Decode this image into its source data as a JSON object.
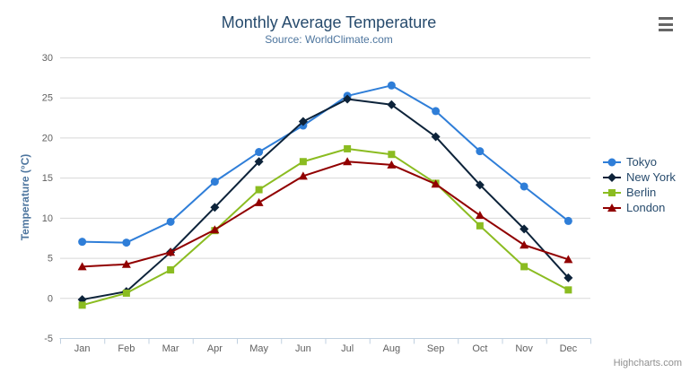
{
  "chart_data": {
    "type": "line",
    "title": "Monthly Average Temperature",
    "subtitle": "Source: WorldClimate.com",
    "categories": [
      "Jan",
      "Feb",
      "Mar",
      "Apr",
      "May",
      "Jun",
      "Jul",
      "Aug",
      "Sep",
      "Oct",
      "Nov",
      "Dec"
    ],
    "xlabel": "",
    "ylabel": "Temperature (°C)",
    "ylim": [
      -5,
      30
    ],
    "ytick_interval": 5,
    "grid": true,
    "legend_position": "right",
    "series": [
      {
        "name": "Tokyo",
        "color": "#2f7ed8",
        "marker": "circle",
        "values": [
          7.0,
          6.9,
          9.5,
          14.5,
          18.2,
          21.5,
          25.2,
          26.5,
          23.3,
          18.3,
          13.9,
          9.6
        ]
      },
      {
        "name": "New York",
        "color": "#0d233a",
        "marker": "diamond",
        "values": [
          -0.2,
          0.8,
          5.7,
          11.3,
          17.0,
          22.0,
          24.8,
          24.1,
          20.1,
          14.1,
          8.6,
          2.5
        ]
      },
      {
        "name": "Berlin",
        "color": "#8bbc21",
        "marker": "square",
        "values": [
          -0.9,
          0.6,
          3.5,
          8.4,
          13.5,
          17.0,
          18.6,
          17.9,
          14.3,
          9.0,
          3.9,
          1.0
        ]
      },
      {
        "name": "London",
        "color": "#910000",
        "marker": "triangle",
        "values": [
          3.9,
          4.2,
          5.7,
          8.5,
          11.9,
          15.2,
          17.0,
          16.6,
          14.2,
          10.3,
          6.6,
          4.8
        ]
      }
    ]
  },
  "credits": {
    "label": "Highcharts.com"
  },
  "export_menu": {
    "icon": "hamburger-icon"
  },
  "theme": {
    "background": "#ffffff",
    "title_color": "#274b6d",
    "subtitle_color": "#4d759e",
    "axis_title_color": "#4d759e",
    "axis_label_color": "#606060",
    "grid_color": "#d8d8d8",
    "axis_line_color": "#c0d0e0",
    "legend_text_color": "#274b6d",
    "credits_color": "#909090",
    "menu_icon_color": "#666666"
  }
}
